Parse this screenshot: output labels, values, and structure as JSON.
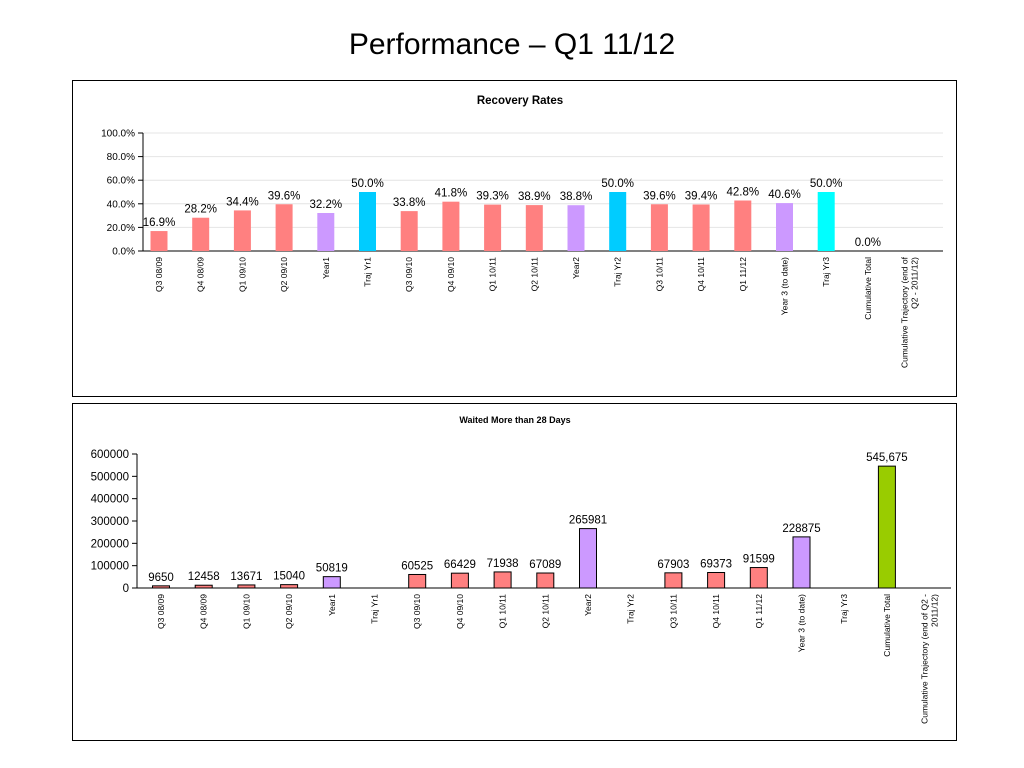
{
  "slide": {
    "title": "Performance – Q1 11/12"
  },
  "chart_data": [
    {
      "type": "bar",
      "title": "Recovery Rates",
      "xlabel": "",
      "ylabel": "",
      "ylim": [
        0,
        100
      ],
      "y_ticks": [
        "0.0%",
        "20.0%",
        "40.0%",
        "60.0%",
        "80.0%",
        "100.0%"
      ],
      "grid": true,
      "legend": "none",
      "categories": [
        "Q3 08/09",
        "Q4 08/09",
        "Q1 09/10",
        "Q2 09/10",
        "Year1",
        "Traj Yr1",
        "Q3 09/10",
        "Q4 09/10",
        "Q1 10/11",
        "Q2 10/11",
        "Year2",
        "Traj Yr2",
        "Q3 10/11",
        "Q4 10/11",
        "Q1 11/12",
        "Year 3 (to date)",
        "Traj Yr3",
        "Cumulative Total",
        "Cumulative Trajectory (end of Q2 - 2011/12)"
      ],
      "values": [
        16.9,
        28.2,
        34.4,
        39.6,
        32.2,
        50.0,
        33.8,
        41.8,
        39.3,
        38.9,
        38.8,
        50.0,
        39.6,
        39.4,
        42.8,
        40.6,
        50.0,
        0.0,
        null
      ],
      "data_labels": [
        "16.9%",
        "28.2%",
        "34.4%",
        "39.6%",
        "32.2%",
        "50.0%",
        "33.8%",
        "41.8%",
        "39.3%",
        "38.9%",
        "38.8%",
        "50.0%",
        "39.6%",
        "39.4%",
        "42.8%",
        "40.6%",
        "50.0%",
        "0.0%",
        ""
      ],
      "colors": [
        "#ff8080",
        "#ff8080",
        "#ff8080",
        "#ff8080",
        "#cc99ff",
        "#00ccff",
        "#ff8080",
        "#ff8080",
        "#ff8080",
        "#ff8080",
        "#cc99ff",
        "#00ccff",
        "#ff8080",
        "#ff8080",
        "#ff8080",
        "#cc99ff",
        "#00ffff",
        "#ff8080",
        "#ff8080"
      ],
      "bar_border": "none"
    },
    {
      "type": "bar",
      "title": "Waited More than 28 Days",
      "xlabel": "",
      "ylabel": "",
      "ylim": [
        0,
        600000
      ],
      "y_ticks": [
        "0",
        "100000",
        "200000",
        "300000",
        "400000",
        "500000",
        "600000"
      ],
      "grid": false,
      "legend": "none",
      "categories": [
        "Q3 08/09",
        "Q4 08/09",
        "Q1 09/10",
        "Q2 09/10",
        "Year1",
        "Traj Yr1",
        "Q3 09/10",
        "Q4 09/10",
        "Q1 10/11",
        "Q2 10/11",
        "Year2",
        "Traj Yr2",
        "Q3 10/11",
        "Q4 10/11",
        "Q1 11/12",
        "Year 3 (to date)",
        "Traj Yr3",
        "Cumulative Total",
        "Cumulative Trajectory (end of Q2 - 2011/12)"
      ],
      "values": [
        9650,
        12458,
        13671,
        15040,
        50819,
        null,
        60525,
        66429,
        71938,
        67089,
        265981,
        null,
        67903,
        69373,
        91599,
        228875,
        null,
        545675,
        null
      ],
      "data_labels": [
        "9650",
        "12458",
        "13671",
        "15040",
        "50819",
        "",
        "60525",
        "66429",
        "71938",
        "67089",
        "265981",
        "",
        "67903",
        "69373",
        "91599",
        "228875",
        "",
        "545,675",
        ""
      ],
      "colors": [
        "#ff8080",
        "#ff8080",
        "#ff8080",
        "#ff8080",
        "#cc99ff",
        "#ff8080",
        "#ff8080",
        "#ff8080",
        "#ff8080",
        "#ff8080",
        "#cc99ff",
        "#ff8080",
        "#ff8080",
        "#ff8080",
        "#ff8080",
        "#cc99ff",
        "#ff8080",
        "#99cc00",
        "#ff8080"
      ],
      "bar_border": "#000000"
    }
  ]
}
